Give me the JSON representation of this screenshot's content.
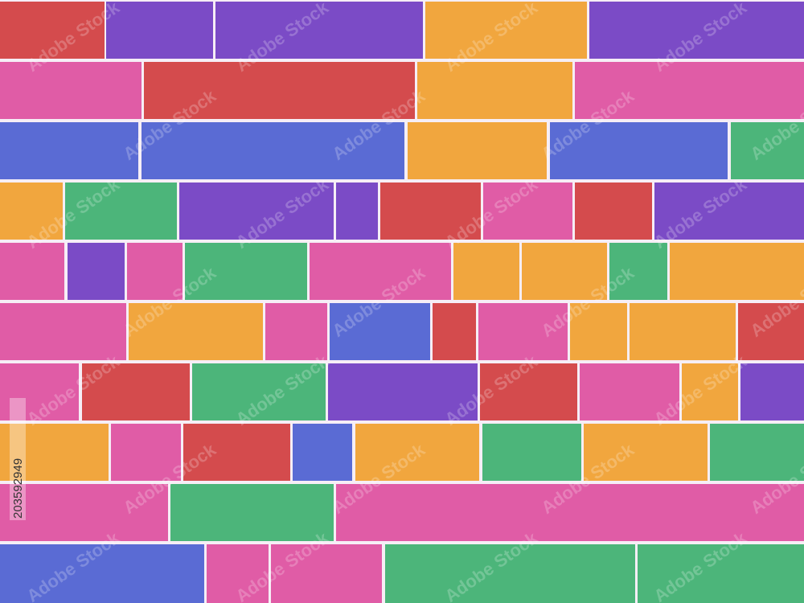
{
  "watermark": "Adobe Stock",
  "stock_id": "203592949"
}
